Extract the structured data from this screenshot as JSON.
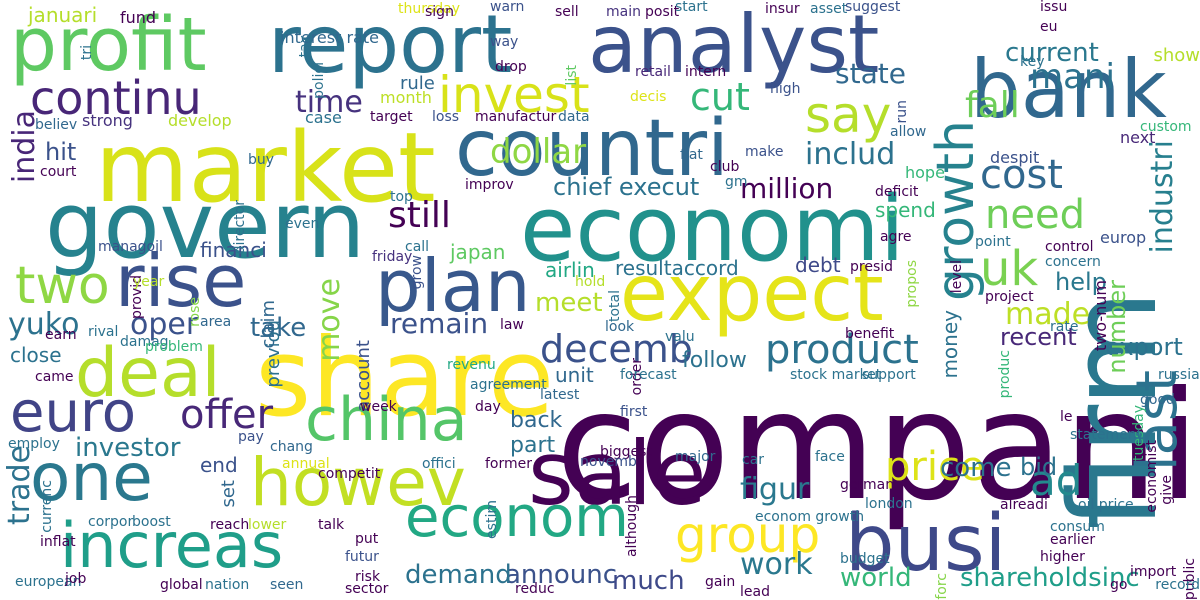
{
  "words": [
    {
      "text": "compani",
      "color": "#440154"
    },
    {
      "text": "firm",
      "color": "#2a788e"
    },
    {
      "text": "share",
      "color": "#fde725"
    },
    {
      "text": "market",
      "color": "#d8e219"
    },
    {
      "text": "govern",
      "color": "#26828e"
    },
    {
      "text": "economi",
      "color": "#21918c"
    },
    {
      "text": "report",
      "color": "#2c728e"
    },
    {
      "text": "analyst",
      "color": "#3b528b"
    },
    {
      "text": "countri",
      "color": "#31688e"
    },
    {
      "text": "bank",
      "color": "#31688e"
    },
    {
      "text": "expect",
      "color": "#e5e419"
    },
    {
      "text": "sale",
      "color": "#440154"
    },
    {
      "text": "busi",
      "color": "#3e4989"
    },
    {
      "text": "profit",
      "color": "#5ec962"
    },
    {
      "text": "rise",
      "color": "#3b528b"
    },
    {
      "text": "plan",
      "color": "#38588c"
    },
    {
      "text": "deal",
      "color": "#b5de2b"
    },
    {
      "text": "howev",
      "color": "#c2df23"
    },
    {
      "text": "one",
      "color": "#2a788e"
    },
    {
      "text": "increas",
      "color": "#1f9e89"
    },
    {
      "text": "china",
      "color": "#54c568"
    },
    {
      "text": "euro",
      "color": "#414487"
    },
    {
      "text": "growth",
      "color": "#26828e"
    },
    {
      "text": "last",
      "color": "#2c728e"
    },
    {
      "text": "econom",
      "color": "#22a884"
    },
    {
      "text": "continu",
      "color": "#482677"
    },
    {
      "text": "invest",
      "color": "#d8e219"
    },
    {
      "text": "group",
      "color": "#fde725"
    },
    {
      "text": "two",
      "color": "#8fd744"
    },
    {
      "text": "say",
      "color": "#b5de2b"
    },
    {
      "text": "uk",
      "color": "#7ad151"
    },
    {
      "text": "mani",
      "color": "#2c728e"
    },
    {
      "text": "cut",
      "color": "#35b779"
    },
    {
      "text": "fall",
      "color": "#6ece58"
    },
    {
      "text": "cost",
      "color": "#31688e"
    },
    {
      "text": "ad",
      "color": "#23898e"
    },
    {
      "text": "industri",
      "color": "#277f8e"
    },
    {
      "text": "price",
      "color": "#dde318"
    },
    {
      "text": "product",
      "color": "#2c728e"
    },
    {
      "text": "decemb",
      "color": "#3b528b"
    },
    {
      "text": "offer",
      "color": "#482878"
    },
    {
      "text": "need",
      "color": "#6ece58"
    },
    {
      "text": "trade",
      "color": "#2c728e"
    },
    {
      "text": "india",
      "color": "#482677"
    },
    {
      "text": "still",
      "color": "#440154"
    },
    {
      "text": "move",
      "color": "#86d549"
    },
    {
      "text": "figur",
      "color": "#2a788e"
    },
    {
      "text": "work",
      "color": "#2a788e"
    },
    {
      "text": "state",
      "color": "#31688e"
    },
    {
      "text": "time",
      "color": "#46327e"
    },
    {
      "text": "includ",
      "color": "#2c728e"
    },
    {
      "text": "dollar",
      "color": "#8fd744"
    },
    {
      "text": "million",
      "color": "#440154"
    },
    {
      "text": "chief execut",
      "color": "#2c728e"
    },
    {
      "text": "investor",
      "color": "#2a788e"
    },
    {
      "text": "made",
      "color": "#bddf26"
    },
    {
      "text": "current",
      "color": "#2a788e"
    },
    {
      "text": "yuko",
      "color": "#2c728e"
    },
    {
      "text": "oper",
      "color": "#3b528b"
    },
    {
      "text": "remain",
      "color": "#3b528b"
    },
    {
      "text": "take",
      "color": "#31688e"
    },
    {
      "text": "meet",
      "color": "#b5de2b"
    },
    {
      "text": "announc",
      "color": "#3b528b"
    },
    {
      "text": "much",
      "color": "#3e4989"
    },
    {
      "text": "demand",
      "color": "#2c728e"
    },
    {
      "text": "world",
      "color": "#35b779"
    },
    {
      "text": "shareholdsinc",
      "color": "#1f9e89"
    },
    {
      "text": "help",
      "color": "#2a788e"
    },
    {
      "text": "recent",
      "color": "#482878"
    },
    {
      "text": "export",
      "color": "#2c728e"
    },
    {
      "text": "bid",
      "color": "#2c728e"
    },
    {
      "text": "come",
      "color": "#2c728e"
    },
    {
      "text": "hit",
      "color": "#3b528b"
    },
    {
      "text": "two-num",
      "color": "#440154"
    },
    {
      "text": "number",
      "color": "#6ece58"
    },
    {
      "text": "close",
      "color": "#2c728e"
    },
    {
      "text": "back",
      "color": "#31688e"
    },
    {
      "text": "part",
      "color": "#2c728e"
    },
    {
      "text": "end",
      "color": "#3b528b"
    },
    {
      "text": "set",
      "color": "#31688e"
    },
    {
      "text": "follow",
      "color": "#2c728e"
    },
    {
      "text": "unit",
      "color": "#31688e"
    },
    {
      "text": "money",
      "color": "#2c728e"
    },
    {
      "text": "spend",
      "color": "#35b779"
    },
    {
      "text": "airlin",
      "color": "#22a884"
    },
    {
      "text": "japan",
      "color": "#5ec962"
    },
    {
      "text": "financi",
      "color": "#3b528b"
    },
    {
      "text": "resultaccord",
      "color": "#2c728e"
    },
    {
      "text": "debt",
      "color": "#3e4989"
    },
    {
      "text": "previou",
      "color": "#2c728e"
    },
    {
      "text": "claim",
      "color": "#31688e"
    },
    {
      "text": "account",
      "color": "#3b528b"
    },
    {
      "text": "januari",
      "color": "#b5de2b"
    },
    {
      "text": "fund",
      "color": "#440154"
    },
    {
      "text": "interest rate",
      "color": "#31688e"
    },
    {
      "text": "thursday",
      "color": "#dde318"
    },
    {
      "text": "sign",
      "color": "#440154"
    },
    {
      "text": "warn",
      "color": "#3b528b"
    },
    {
      "text": "sell",
      "color": "#440154"
    },
    {
      "text": "main",
      "color": "#46327e"
    },
    {
      "text": "posit",
      "color": "#440154"
    },
    {
      "text": "start",
      "color": "#2c728e"
    },
    {
      "text": "insur",
      "color": "#440154"
    },
    {
      "text": "asset",
      "color": "#2c728e"
    },
    {
      "text": "suggest",
      "color": "#3b528b"
    },
    {
      "text": "issu",
      "color": "#440154"
    },
    {
      "text": "eu",
      "color": "#440154"
    },
    {
      "text": "key",
      "color": "#2c728e"
    },
    {
      "text": "show",
      "color": "#b5de2b"
    },
    {
      "text": "custom",
      "color": "#35b779"
    },
    {
      "text": "next",
      "color": "#482878"
    },
    {
      "text": "despit",
      "color": "#3b528b"
    },
    {
      "text": "allow",
      "color": "#31688e"
    },
    {
      "text": "run",
      "color": "#3b528b"
    },
    {
      "text": "way",
      "color": "#3b528b"
    },
    {
      "text": "drop",
      "color": "#440154"
    },
    {
      "text": "list",
      "color": "#5ec962"
    },
    {
      "text": "retail",
      "color": "#482878"
    },
    {
      "text": "intern",
      "color": "#440154"
    },
    {
      "text": "rule",
      "color": "#31688e"
    },
    {
      "text": "month",
      "color": "#bddf26"
    },
    {
      "text": "decis",
      "color": "#dde318"
    },
    {
      "text": "high",
      "color": "#3b528b"
    },
    {
      "text": "make",
      "color": "#3b528b"
    },
    {
      "text": "fiat",
      "color": "#31688e"
    },
    {
      "text": "club",
      "color": "#440154"
    },
    {
      "text": "gm",
      "color": "#2c728e"
    },
    {
      "text": "hope",
      "color": "#35b779"
    },
    {
      "text": "deficit",
      "color": "#440154"
    },
    {
      "text": "agre",
      "color": "#440154"
    },
    {
      "text": "presid",
      "color": "#440154"
    },
    {
      "text": "propos",
      "color": "#8fd744"
    },
    {
      "text": "level",
      "color": "#440154"
    },
    {
      "text": "point",
      "color": "#2c728e"
    },
    {
      "text": "europ",
      "color": "#3b528b"
    },
    {
      "text": "control",
      "color": "#440154"
    },
    {
      "text": "concern",
      "color": "#2c728e"
    },
    {
      "text": "project",
      "color": "#440154"
    },
    {
      "text": "rate",
      "color": "#2c728e"
    },
    {
      "text": "benefit",
      "color": "#440154"
    },
    {
      "text": "polici",
      "color": "#2c728e"
    },
    {
      "text": "tax",
      "color": "#2c728e"
    },
    {
      "text": "tri",
      "color": "#2c728e"
    },
    {
      "text": "believ",
      "color": "#31688e"
    },
    {
      "text": "strong",
      "color": "#46327e"
    },
    {
      "text": "develop",
      "color": "#b5de2b"
    },
    {
      "text": "case",
      "color": "#2c728e"
    },
    {
      "text": "target",
      "color": "#440154"
    },
    {
      "text": "loss",
      "color": "#3b528b"
    },
    {
      "text": "manufactur",
      "color": "#440154"
    },
    {
      "text": "data",
      "color": "#31688e"
    },
    {
      "text": "court",
      "color": "#440154"
    },
    {
      "text": "improv",
      "color": "#440154"
    },
    {
      "text": "buy",
      "color": "#31688e"
    },
    {
      "text": "director",
      "color": "#2c728e"
    },
    {
      "text": "top",
      "color": "#2c728e"
    },
    {
      "text": "even",
      "color": "#2c728e"
    },
    {
      "text": "call",
      "color": "#2c728e"
    },
    {
      "text": "friday",
      "color": "#46327e"
    },
    {
      "text": "managoil",
      "color": "#3b528b"
    },
    {
      "text": "provid",
      "color": "#440154"
    },
    {
      "text": "year",
      "color": "#b5de2b"
    },
    {
      "text": "rose",
      "color": "#86d549"
    },
    {
      "text": "area",
      "color": "#31688e"
    },
    {
      "text": "grow",
      "color": "#3b528b"
    },
    {
      "text": "hold",
      "color": "#b5de2b"
    },
    {
      "text": "total",
      "color": "#2c728e"
    },
    {
      "text": "look",
      "color": "#31688e"
    },
    {
      "text": "valu",
      "color": "#2c728e"
    },
    {
      "text": "rival",
      "color": "#2c728e"
    },
    {
      "text": "earn",
      "color": "#440154"
    },
    {
      "text": "damag",
      "color": "#2c728e"
    },
    {
      "text": "problem",
      "color": "#35b779"
    },
    {
      "text": "law",
      "color": "#440154"
    },
    {
      "text": "revenu",
      "color": "#22a884"
    },
    {
      "text": "order",
      "color": "#440154"
    },
    {
      "text": "forecast",
      "color": "#2c728e"
    },
    {
      "text": "stock market",
      "color": "#2c728e"
    },
    {
      "text": "support",
      "color": "#2c728e"
    },
    {
      "text": "produc",
      "color": "#35b779"
    },
    {
      "text": "russia",
      "color": "#2c728e"
    },
    {
      "text": "good",
      "color": "#31688e"
    },
    {
      "text": "came",
      "color": "#440154"
    },
    {
      "text": "agreement",
      "color": "#2c728e"
    },
    {
      "text": "latest",
      "color": "#31688e"
    },
    {
      "text": "week",
      "color": "#440154"
    },
    {
      "text": "day",
      "color": "#440154"
    },
    {
      "text": "first",
      "color": "#3b528b"
    },
    {
      "text": "le",
      "color": "#440154"
    },
    {
      "text": "tuesday",
      "color": "#35b779"
    },
    {
      "text": "statement",
      "color": "#2c728e"
    },
    {
      "text": "economist",
      "color": "#440154"
    },
    {
      "text": "employ",
      "color": "#2c728e"
    },
    {
      "text": "chang",
      "color": "#31688e"
    },
    {
      "text": "pay",
      "color": "#3b528b"
    },
    {
      "text": "biggest",
      "color": "#440154"
    },
    {
      "text": "major",
      "color": "#31688e"
    },
    {
      "text": "car",
      "color": "#2c728e"
    },
    {
      "text": "face",
      "color": "#2c728e"
    },
    {
      "text": "german",
      "color": "#440154"
    },
    {
      "text": "london",
      "color": "#2c728e"
    },
    {
      "text": "novemb",
      "color": "#3b528b"
    },
    {
      "text": "annual",
      "color": "#dde318"
    },
    {
      "text": "competit",
      "color": "#440154"
    },
    {
      "text": "offici",
      "color": "#2c728e"
    },
    {
      "text": "former",
      "color": "#440154"
    },
    {
      "text": "currenc",
      "color": "#2c728e"
    },
    {
      "text": "corpor",
      "color": "#2c728e"
    },
    {
      "text": "boost",
      "color": "#2c728e"
    },
    {
      "text": "reach",
      "color": "#440154"
    },
    {
      "text": "lower",
      "color": "#b5de2b"
    },
    {
      "text": "talk",
      "color": "#440154"
    },
    {
      "text": "estim",
      "color": "#2c728e"
    },
    {
      "text": "although",
      "color": "#440154"
    },
    {
      "text": "econom growth",
      "color": "#2c728e"
    },
    {
      "text": "alreadi",
      "color": "#440154"
    },
    {
      "text": "oil price",
      "color": "#2c728e"
    },
    {
      "text": "consum",
      "color": "#2c728e"
    },
    {
      "text": "earlier",
      "color": "#440154"
    },
    {
      "text": "higher",
      "color": "#440154"
    },
    {
      "text": "give",
      "color": "#440154"
    },
    {
      "text": "import",
      "color": "#440154"
    },
    {
      "text": "public",
      "color": "#440154"
    },
    {
      "text": "inflat",
      "color": "#440154"
    },
    {
      "text": "put",
      "color": "#440154"
    },
    {
      "text": "futur",
      "color": "#3b528b"
    },
    {
      "text": "budget",
      "color": "#2c728e"
    },
    {
      "text": "go",
      "color": "#440154"
    },
    {
      "text": "record",
      "color": "#2c728e"
    },
    {
      "text": "european",
      "color": "#2c728e"
    },
    {
      "text": "job",
      "color": "#440154"
    },
    {
      "text": "global",
      "color": "#440154"
    },
    {
      "text": "nation",
      "color": "#2c728e"
    },
    {
      "text": "seen",
      "color": "#31688e"
    },
    {
      "text": "risk",
      "color": "#440154"
    },
    {
      "text": "sector",
      "color": "#440154"
    },
    {
      "text": "reduc",
      "color": "#440154"
    },
    {
      "text": "gain",
      "color": "#440154"
    },
    {
      "text": "lead",
      "color": "#440154"
    },
    {
      "text": "forc",
      "color": "#86d549"
    }
  ]
}
